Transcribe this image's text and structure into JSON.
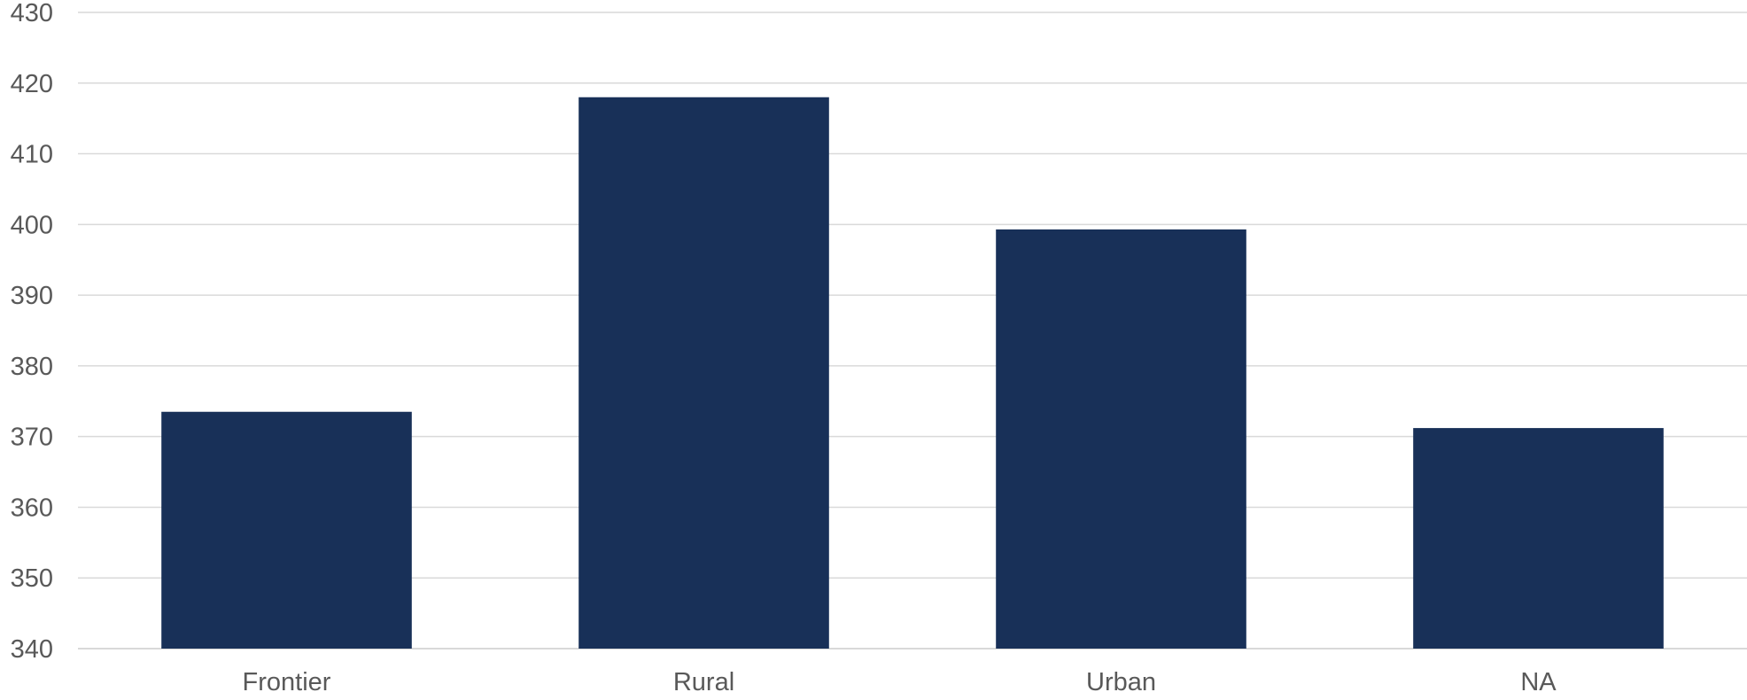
{
  "chart_data": {
    "type": "bar",
    "title": "",
    "xlabel": "",
    "ylabel": "",
    "categories": [
      "Frontier",
      "Rural",
      "Urban",
      "NA"
    ],
    "values": [
      373.5,
      418.0,
      399.3,
      371.2
    ],
    "ylim": [
      340,
      430
    ],
    "yticks": [
      340,
      350,
      360,
      370,
      380,
      390,
      400,
      410,
      420,
      430
    ],
    "grid": true,
    "legend": "none",
    "colors": {
      "bar": "#183058",
      "grid": "#d9d9d9",
      "text": "#595959"
    }
  }
}
